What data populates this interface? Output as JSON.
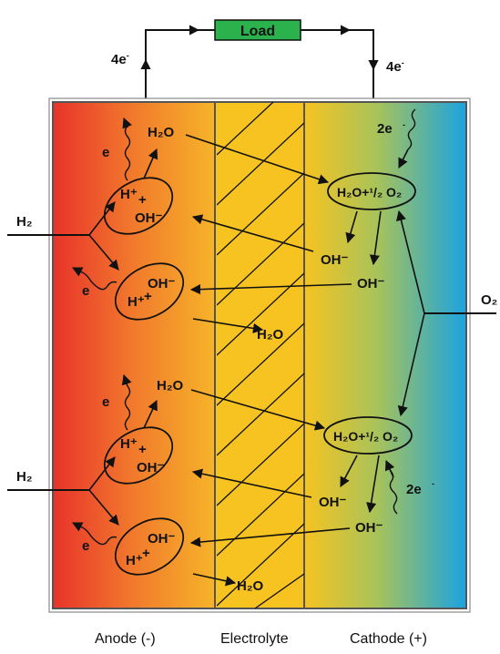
{
  "load": {
    "label": "Load",
    "color": "#2bb24c"
  },
  "electrons": {
    "left_wire": "4e",
    "right_wire": "4e",
    "cathode_in": "2e",
    "anode_out": "e",
    "superscript": "-"
  },
  "species": {
    "water": "H₂O",
    "hydroxide": "OH⁻",
    "proton": "H⁺",
    "hydrogen": "H₂",
    "oxygen": "O₂",
    "cathode_reactants": "H₂O+¹/₂ O₂",
    "plus": "+"
  },
  "regions": {
    "anode": "Anode (-)",
    "electrolyte": "Electrolyte",
    "cathode": "Cathode (+)"
  },
  "colors": {
    "anode_left": "#e8332b",
    "anode_right": "#f6b42a",
    "electrolyte": "#f6c321",
    "cathode_left": "#f6c321",
    "cathode_right": "#1aa3e0"
  }
}
